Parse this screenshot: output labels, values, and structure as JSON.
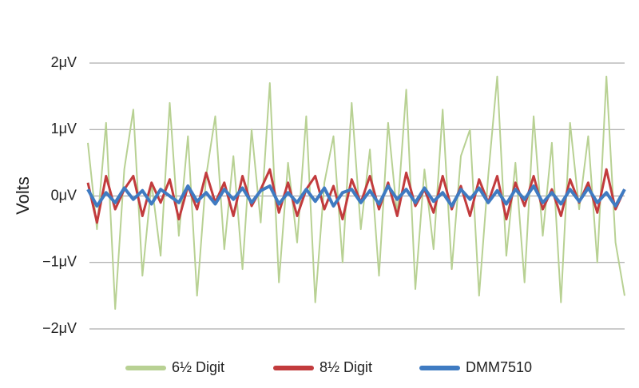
{
  "chart_data": {
    "type": "line",
    "y_label": "Volts",
    "ylim": [
      -2,
      2
    ],
    "yticks": [
      {
        "value": 2,
        "label": "2μV"
      },
      {
        "value": 1,
        "label": "1μV"
      },
      {
        "value": 0,
        "label": "0μV"
      },
      {
        "value": -1,
        "label": "−1μV"
      },
      {
        "value": -2,
        "label": "−2μV"
      }
    ],
    "grid": true,
    "legend": "bottom",
    "categories": [
      null,
      null,
      null,
      null,
      null,
      null,
      null,
      null,
      null,
      null,
      null,
      null,
      null,
      null,
      null,
      null,
      null,
      null,
      null,
      null,
      null,
      null,
      null,
      null,
      null,
      null,
      null,
      null,
      null,
      null,
      null,
      null,
      null,
      null,
      null,
      null,
      null,
      null,
      null,
      null,
      null,
      null,
      null,
      null,
      null,
      null,
      null,
      null,
      null,
      null,
      null,
      null,
      null,
      null,
      null,
      null,
      null,
      null,
      null,
      null
    ],
    "series": [
      {
        "name": "6½ Digit",
        "color": "#b8d193",
        "width": 2,
        "values": [
          0.8,
          -0.5,
          1.1,
          -1.7,
          0.4,
          1.3,
          -1.2,
          0.2,
          -0.9,
          1.4,
          -0.6,
          0.9,
          -1.5,
          0.3,
          1.2,
          -0.8,
          0.6,
          -1.1,
          1.0,
          -0.4,
          1.7,
          -1.3,
          0.5,
          -0.7,
          1.2,
          -1.6,
          0.2,
          0.9,
          -1.0,
          1.4,
          -0.5,
          0.7,
          -1.2,
          1.1,
          -0.3,
          1.6,
          -1.4,
          0.4,
          -0.8,
          1.3,
          -1.1,
          0.6,
          1.0,
          -1.5,
          0.3,
          1.8,
          -0.9,
          0.5,
          -1.3,
          1.2,
          -0.6,
          0.8,
          -1.6,
          1.1,
          -0.2,
          0.9,
          -1.0,
          1.8,
          -0.7,
          -1.5
        ]
      },
      {
        "name": "8½ Digit",
        "color": "#c23b3d",
        "width": 3,
        "values": [
          0.2,
          -0.4,
          0.3,
          -0.2,
          0.1,
          0.3,
          -0.3,
          0.2,
          -0.1,
          0.25,
          -0.35,
          0.15,
          -0.2,
          0.35,
          -0.1,
          0.2,
          -0.3,
          0.3,
          -0.15,
          0.1,
          0.4,
          -0.25,
          0.2,
          -0.3,
          0.1,
          0.3,
          -0.2,
          0.15,
          -0.35,
          0.25,
          -0.1,
          0.3,
          -0.2,
          0.2,
          -0.3,
          0.35,
          -0.15,
          0.1,
          -0.25,
          0.3,
          -0.2,
          0.15,
          -0.3,
          0.25,
          -0.1,
          0.3,
          -0.35,
          0.2,
          -0.15,
          0.3,
          -0.2,
          0.1,
          -0.3,
          0.25,
          -0.1,
          0.2,
          -0.25,
          0.4,
          -0.2,
          0.1
        ]
      },
      {
        "name": "DMM7510",
        "color": "#3f7bc2",
        "width": 4,
        "values": [
          0.1,
          -0.15,
          0.05,
          -0.1,
          0.12,
          -0.05,
          0.08,
          -0.12,
          0.1,
          0.0,
          -0.1,
          0.15,
          -0.08,
          0.05,
          -0.12,
          0.1,
          -0.05,
          0.12,
          -0.1,
          0.08,
          0.15,
          -0.12,
          0.05,
          -0.1,
          0.1,
          -0.08,
          0.12,
          -0.15,
          0.05,
          0.1,
          -0.1,
          0.08,
          -0.12,
          0.15,
          -0.05,
          0.1,
          -0.1,
          0.12,
          -0.08,
          0.05,
          -0.15,
          0.1,
          -0.05,
          0.12,
          -0.1,
          0.08,
          -0.12,
          0.1,
          -0.05,
          0.15,
          -0.1,
          0.05,
          -0.12,
          0.1,
          -0.08,
          0.12,
          -0.1,
          0.05,
          -0.15,
          0.1
        ]
      }
    ]
  }
}
